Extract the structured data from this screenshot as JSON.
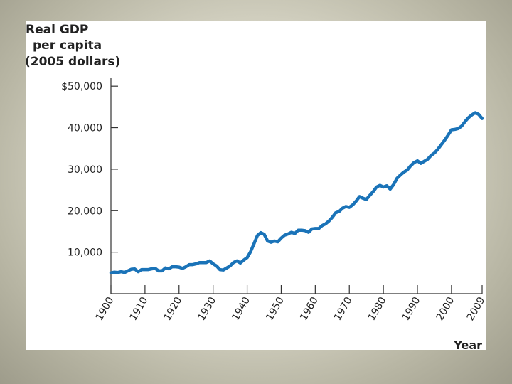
{
  "colors": {
    "line": "#1a73b8",
    "axis": "#333333",
    "panel": "#ffffff"
  },
  "chart_data": {
    "type": "line",
    "title": "",
    "ylabel_lines": [
      "Real GDP",
      "per capita",
      "(2005 dollars)"
    ],
    "xlabel": "Year",
    "ylim": [
      0,
      55000
    ],
    "xlim": [
      1900,
      2009
    ],
    "y_ticks": [
      {
        "value": 10000,
        "label": "10,000"
      },
      {
        "value": 20000,
        "label": "20,000"
      },
      {
        "value": 30000,
        "label": "30,000"
      },
      {
        "value": 40000,
        "label": "40,000"
      },
      {
        "value": 50000,
        "label": "$50,000"
      }
    ],
    "x_ticks": [
      {
        "value": 1900,
        "label": "1900"
      },
      {
        "value": 1910,
        "label": "1910"
      },
      {
        "value": 1920,
        "label": "1920"
      },
      {
        "value": 1930,
        "label": "1930"
      },
      {
        "value": 1940,
        "label": "1940"
      },
      {
        "value": 1950,
        "label": "1950"
      },
      {
        "value": 1960,
        "label": "1960"
      },
      {
        "value": 1970,
        "label": "1970"
      },
      {
        "value": 1980,
        "label": "1980"
      },
      {
        "value": 1990,
        "label": "1990"
      },
      {
        "value": 2000,
        "label": "2000"
      },
      {
        "value": 2009,
        "label": "2009"
      }
    ],
    "series": [
      {
        "name": "Real GDP per capita",
        "x": [
          1900,
          1901,
          1902,
          1903,
          1904,
          1905,
          1906,
          1907,
          1908,
          1909,
          1910,
          1911,
          1912,
          1913,
          1914,
          1915,
          1916,
          1917,
          1918,
          1919,
          1920,
          1921,
          1922,
          1923,
          1924,
          1925,
          1926,
          1927,
          1928,
          1929,
          1930,
          1931,
          1932,
          1933,
          1934,
          1935,
          1936,
          1937,
          1938,
          1939,
          1940,
          1941,
          1942,
          1943,
          1944,
          1945,
          1946,
          1947,
          1948,
          1949,
          1950,
          1951,
          1952,
          1953,
          1954,
          1955,
          1956,
          1957,
          1958,
          1959,
          1960,
          1961,
          1962,
          1963,
          1964,
          1965,
          1966,
          1967,
          1968,
          1969,
          1970,
          1971,
          1972,
          1973,
          1974,
          1975,
          1976,
          1977,
          1978,
          1979,
          1980,
          1981,
          1982,
          1983,
          1984,
          1985,
          1986,
          1987,
          1988,
          1989,
          1990,
          1991,
          1992,
          1993,
          1994,
          1995,
          1996,
          1997,
          1998,
          1999,
          2000,
          2001,
          2002,
          2003,
          2004,
          2005,
          2006,
          2007,
          2008,
          2009
        ],
        "values": [
          5000,
          5200,
          5100,
          5300,
          5100,
          5500,
          5900,
          5950,
          5300,
          5800,
          5800,
          5800,
          6000,
          6100,
          5500,
          5500,
          6200,
          6000,
          6500,
          6500,
          6400,
          6100,
          6500,
          7000,
          7000,
          7200,
          7500,
          7500,
          7500,
          7900,
          7200,
          6700,
          5800,
          5700,
          6200,
          6700,
          7500,
          7900,
          7400,
          8100,
          8700,
          10100,
          12000,
          14000,
          14700,
          14300,
          12700,
          12400,
          12700,
          12500,
          13400,
          14100,
          14400,
          14800,
          14500,
          15300,
          15300,
          15200,
          14800,
          15600,
          15700,
          15700,
          16400,
          16800,
          17500,
          18400,
          19500,
          19800,
          20600,
          21000,
          20800,
          21400,
          22300,
          23400,
          23000,
          22700,
          23700,
          24600,
          25700,
          26100,
          25700,
          26000,
          25200,
          26300,
          27800,
          28600,
          29300,
          29800,
          30800,
          31600,
          32000,
          31400,
          31900,
          32400,
          33300,
          33900,
          34800,
          35900,
          37000,
          38200,
          39500,
          39600,
          39800,
          40400,
          41500,
          42400,
          43100,
          43600,
          43200,
          42200
        ]
      }
    ]
  }
}
